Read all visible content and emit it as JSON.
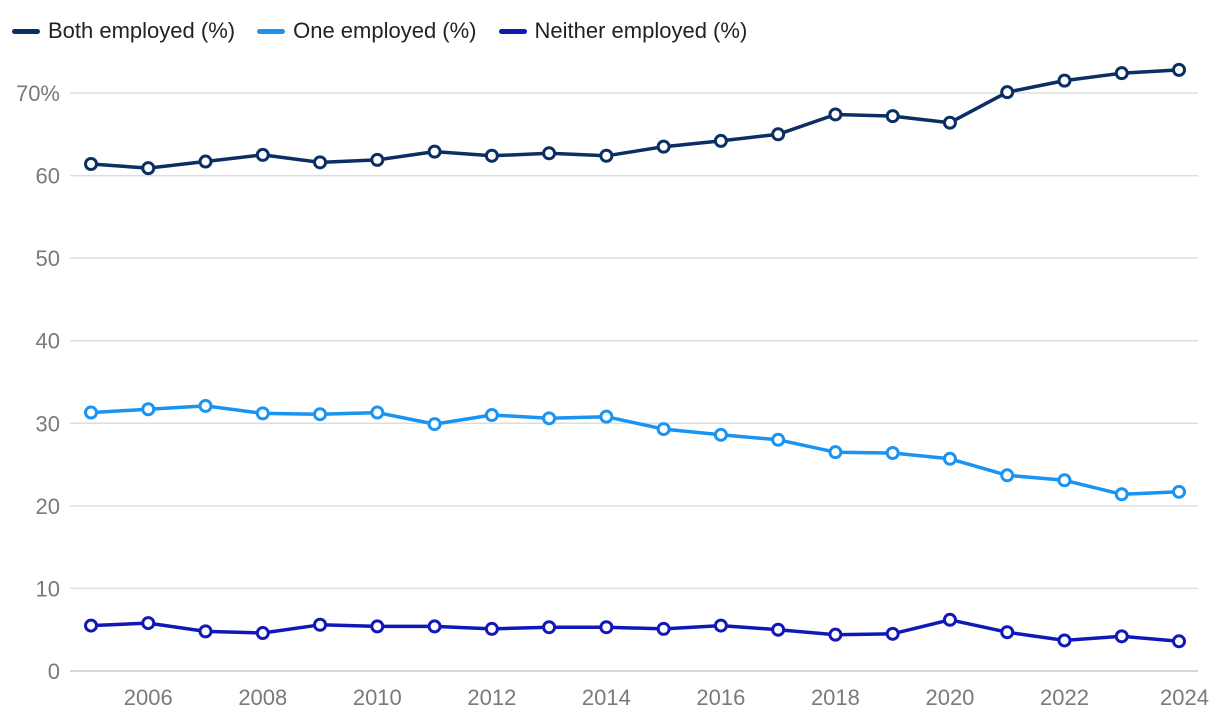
{
  "chart_data": {
    "type": "line",
    "title": "",
    "xlabel": "",
    "ylabel": "",
    "x": [
      2005,
      2006,
      2007,
      2008,
      2009,
      2010,
      2011,
      2012,
      2013,
      2014,
      2015,
      2016,
      2017,
      2018,
      2019,
      2020,
      2021,
      2022,
      2023,
      2024
    ],
    "series": [
      {
        "name": "Both employed (%)",
        "color": "#0b2e63",
        "values": [
          61.4,
          60.9,
          61.7,
          62.5,
          61.6,
          61.9,
          62.9,
          62.4,
          62.7,
          62.4,
          63.5,
          64.2,
          65.0,
          67.4,
          67.2,
          66.4,
          70.1,
          71.5,
          72.4,
          72.8
        ]
      },
      {
        "name": "One employed (%)",
        "color": "#1a94f0",
        "values": [
          31.3,
          31.7,
          32.1,
          31.2,
          31.1,
          31.3,
          29.9,
          31.0,
          30.6,
          30.8,
          29.3,
          28.6,
          28.0,
          26.5,
          26.4,
          25.7,
          23.7,
          23.1,
          21.4,
          21.7
        ]
      },
      {
        "name": "Neither employed (%)",
        "color": "#1019b8",
        "values": [
          5.5,
          5.8,
          4.8,
          4.6,
          5.6,
          5.4,
          5.4,
          5.1,
          5.3,
          5.3,
          5.1,
          5.5,
          5.0,
          4.4,
          4.5,
          6.2,
          4.7,
          3.7,
          4.2,
          3.6
        ]
      }
    ],
    "ylim": [
      0,
      75
    ],
    "yticks": [
      0,
      10,
      20,
      30,
      40,
      50,
      60,
      70
    ],
    "ytick_labels": [
      "0",
      "10",
      "20",
      "30",
      "40",
      "50",
      "60",
      "70%"
    ],
    "xticks": [
      2006,
      2008,
      2010,
      2012,
      2014,
      2016,
      2018,
      2020,
      2022,
      2024
    ],
    "xtick_labels": [
      "2006",
      "2008",
      "2010",
      "2012",
      "2014",
      "2016",
      "2018",
      "2020",
      "2022",
      "2024"
    ],
    "grid": "horizontal",
    "legend": "top-left",
    "marker": "open-circle",
    "gridline_color": "#dddddd",
    "baseline_color": "#cccccc"
  }
}
